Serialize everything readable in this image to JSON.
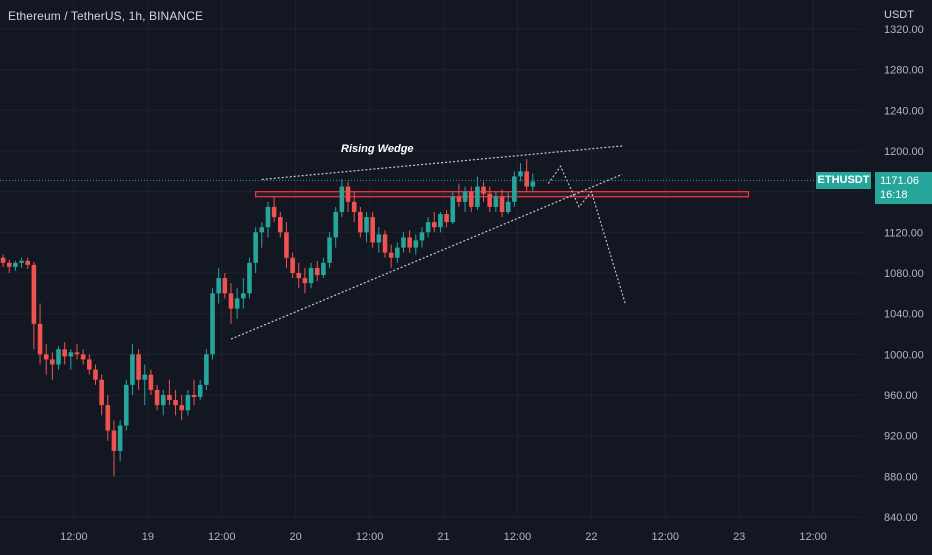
{
  "header": {
    "title": "Ethereum / TetherUS, 1h, BINANCE",
    "currency": "USDT"
  },
  "annotation": {
    "text": "Rising Wedge"
  },
  "last_price": {
    "symbol": "ETHUSDT",
    "value": "1171.06",
    "countdown": "16:18"
  },
  "colors": {
    "background": "#131722",
    "up": "#26a69a",
    "down": "#ef5350",
    "grid": "#1e222d",
    "text": "#b2b5be",
    "resistance_zone": "#f23645"
  },
  "chart_data": {
    "type": "candlestick",
    "title": "Ethereum / TetherUS, 1h, BINANCE",
    "ylabel": "USDT",
    "ylim": [
      840,
      1320
    ],
    "yticks": [
      "840.00",
      "880.00",
      "920.00",
      "960.00",
      "1000.00",
      "1040.00",
      "1080.00",
      "1120.00",
      "1160.00",
      "1200.00",
      "1240.00",
      "1280.00",
      "1320.00"
    ],
    "xticks": [
      "12:00",
      "19",
      "12:00",
      "20",
      "12:00",
      "21",
      "12:00",
      "22",
      "12:00",
      "23",
      "12:00"
    ],
    "x_tick_hours": [
      12,
      24,
      36,
      48,
      60,
      72,
      84,
      96,
      108,
      120,
      132
    ],
    "x_range_hours": [
      0.5,
      140
    ],
    "candles": [
      [
        0.5,
        1095,
        1098,
        1086,
        1090
      ],
      [
        1.5,
        1090,
        1093,
        1080,
        1086
      ],
      [
        2.5,
        1086,
        1092,
        1082,
        1090
      ],
      [
        3.5,
        1090,
        1095,
        1085,
        1092
      ],
      [
        4.5,
        1092,
        1095,
        1084,
        1088
      ],
      [
        5.5,
        1088,
        1091,
        1005,
        1030
      ],
      [
        6.5,
        1030,
        1050,
        990,
        1000
      ],
      [
        7.5,
        1000,
        1010,
        980,
        995
      ],
      [
        8.5,
        995,
        1002,
        975,
        990
      ],
      [
        9.5,
        990,
        1008,
        985,
        1005
      ],
      [
        10.5,
        1005,
        1012,
        990,
        998
      ],
      [
        11.5,
        998,
        1005,
        985,
        1002
      ],
      [
        12.5,
        1002,
        1010,
        995,
        1000
      ],
      [
        13.5,
        1000,
        1005,
        990,
        995
      ],
      [
        14.5,
        995,
        1000,
        980,
        985
      ],
      [
        15.5,
        985,
        990,
        970,
        975
      ],
      [
        16.5,
        975,
        980,
        940,
        950
      ],
      [
        17.5,
        950,
        960,
        915,
        925
      ],
      [
        18.5,
        925,
        935,
        880,
        905
      ],
      [
        19.5,
        905,
        935,
        895,
        930
      ],
      [
        20.5,
        930,
        975,
        925,
        970
      ],
      [
        21.5,
        970,
        1010,
        960,
        1000
      ],
      [
        22.5,
        1000,
        1005,
        965,
        975
      ],
      [
        23.5,
        975,
        990,
        950,
        980
      ],
      [
        24.5,
        980,
        985,
        960,
        965
      ],
      [
        25.5,
        965,
        970,
        945,
        950
      ],
      [
        26.5,
        950,
        965,
        940,
        960
      ],
      [
        27.5,
        960,
        975,
        950,
        955
      ],
      [
        28.5,
        955,
        965,
        940,
        950
      ],
      [
        29.5,
        950,
        960,
        935,
        945
      ],
      [
        30.5,
        945,
        965,
        940,
        960
      ],
      [
        31.5,
        960,
        975,
        950,
        958
      ],
      [
        32.5,
        958,
        975,
        955,
        970
      ],
      [
        33.5,
        970,
        1005,
        965,
        1000
      ],
      [
        34.5,
        1000,
        1065,
        995,
        1060
      ],
      [
        35.5,
        1060,
        1085,
        1050,
        1075
      ],
      [
        36.5,
        1075,
        1080,
        1055,
        1060
      ],
      [
        37.5,
        1060,
        1070,
        1030,
        1045
      ],
      [
        38.5,
        1045,
        1065,
        1035,
        1055
      ],
      [
        39.5,
        1055,
        1075,
        1045,
        1060
      ],
      [
        40.5,
        1060,
        1095,
        1055,
        1090
      ],
      [
        41.5,
        1090,
        1125,
        1080,
        1120
      ],
      [
        42.5,
        1120,
        1130,
        1105,
        1125
      ],
      [
        43.5,
        1125,
        1150,
        1115,
        1145
      ],
      [
        44.5,
        1145,
        1155,
        1130,
        1135
      ],
      [
        45.5,
        1135,
        1140,
        1115,
        1120
      ],
      [
        46.5,
        1120,
        1130,
        1085,
        1095
      ],
      [
        47.5,
        1095,
        1100,
        1075,
        1080
      ],
      [
        48.5,
        1080,
        1090,
        1065,
        1075
      ],
      [
        49.5,
        1075,
        1085,
        1060,
        1070
      ],
      [
        50.5,
        1070,
        1090,
        1065,
        1085
      ],
      [
        51.5,
        1085,
        1092,
        1072,
        1078
      ],
      [
        52.5,
        1078,
        1095,
        1075,
        1090
      ],
      [
        53.5,
        1090,
        1120,
        1085,
        1115
      ],
      [
        54.5,
        1115,
        1145,
        1105,
        1140
      ],
      [
        55.5,
        1140,
        1172,
        1135,
        1165
      ],
      [
        56.5,
        1165,
        1170,
        1140,
        1150
      ],
      [
        57.5,
        1150,
        1160,
        1130,
        1140
      ],
      [
        58.5,
        1140,
        1145,
        1115,
        1120
      ],
      [
        59.5,
        1120,
        1140,
        1110,
        1135
      ],
      [
        60.5,
        1135,
        1140,
        1105,
        1110
      ],
      [
        61.5,
        1110,
        1125,
        1100,
        1118
      ],
      [
        62.5,
        1118,
        1122,
        1095,
        1100
      ],
      [
        63.5,
        1100,
        1108,
        1085,
        1095
      ],
      [
        64.5,
        1095,
        1110,
        1090,
        1105
      ],
      [
        65.5,
        1105,
        1120,
        1100,
        1115
      ],
      [
        66.5,
        1115,
        1122,
        1100,
        1105
      ],
      [
        67.5,
        1105,
        1118,
        1098,
        1112
      ],
      [
        68.5,
        1112,
        1125,
        1105,
        1120
      ],
      [
        69.5,
        1120,
        1135,
        1115,
        1130
      ],
      [
        70.5,
        1130,
        1140,
        1120,
        1125
      ],
      [
        71.5,
        1125,
        1140,
        1120,
        1138
      ],
      [
        72.5,
        1138,
        1142,
        1125,
        1130
      ],
      [
        73.5,
        1130,
        1160,
        1128,
        1155
      ],
      [
        74.5,
        1155,
        1168,
        1145,
        1150
      ],
      [
        75.5,
        1150,
        1165,
        1140,
        1160
      ],
      [
        76.5,
        1160,
        1165,
        1140,
        1145
      ],
      [
        77.5,
        1145,
        1175,
        1142,
        1165
      ],
      [
        78.5,
        1165,
        1170,
        1150,
        1158
      ],
      [
        79.5,
        1158,
        1165,
        1140,
        1145
      ],
      [
        80.5,
        1145,
        1160,
        1140,
        1155
      ],
      [
        81.5,
        1155,
        1162,
        1135,
        1140
      ],
      [
        82.5,
        1140,
        1160,
        1138,
        1150
      ],
      [
        83.5,
        1150,
        1180,
        1145,
        1175
      ],
      [
        84.5,
        1175,
        1188,
        1170,
        1180
      ],
      [
        85.5,
        1180,
        1192,
        1160,
        1165
      ],
      [
        86.5,
        1165,
        1178,
        1160,
        1170
      ]
    ],
    "last_price": 1171.06,
    "annotations": [
      {
        "type": "text",
        "text": "Rising Wedge",
        "x": 62,
        "y": 1200
      },
      {
        "type": "trendline",
        "label": "wedge-upper",
        "x1": 42.5,
        "y1": 1172,
        "x2": 101,
        "y2": 1205
      },
      {
        "type": "trendline",
        "label": "wedge-lower",
        "x1": 37.5,
        "y1": 1015,
        "x2": 101,
        "y2": 1177
      },
      {
        "type": "zone",
        "label": "resistance",
        "x1": 41.5,
        "x2": 121.5,
        "y1": 1155,
        "y2": 1160
      },
      {
        "type": "projection",
        "label": "bearish-projection",
        "points": [
          [
            89,
            1168
          ],
          [
            91,
            1185
          ],
          [
            94,
            1145
          ],
          [
            96,
            1160
          ],
          [
            101.5,
            1050
          ]
        ]
      }
    ]
  }
}
